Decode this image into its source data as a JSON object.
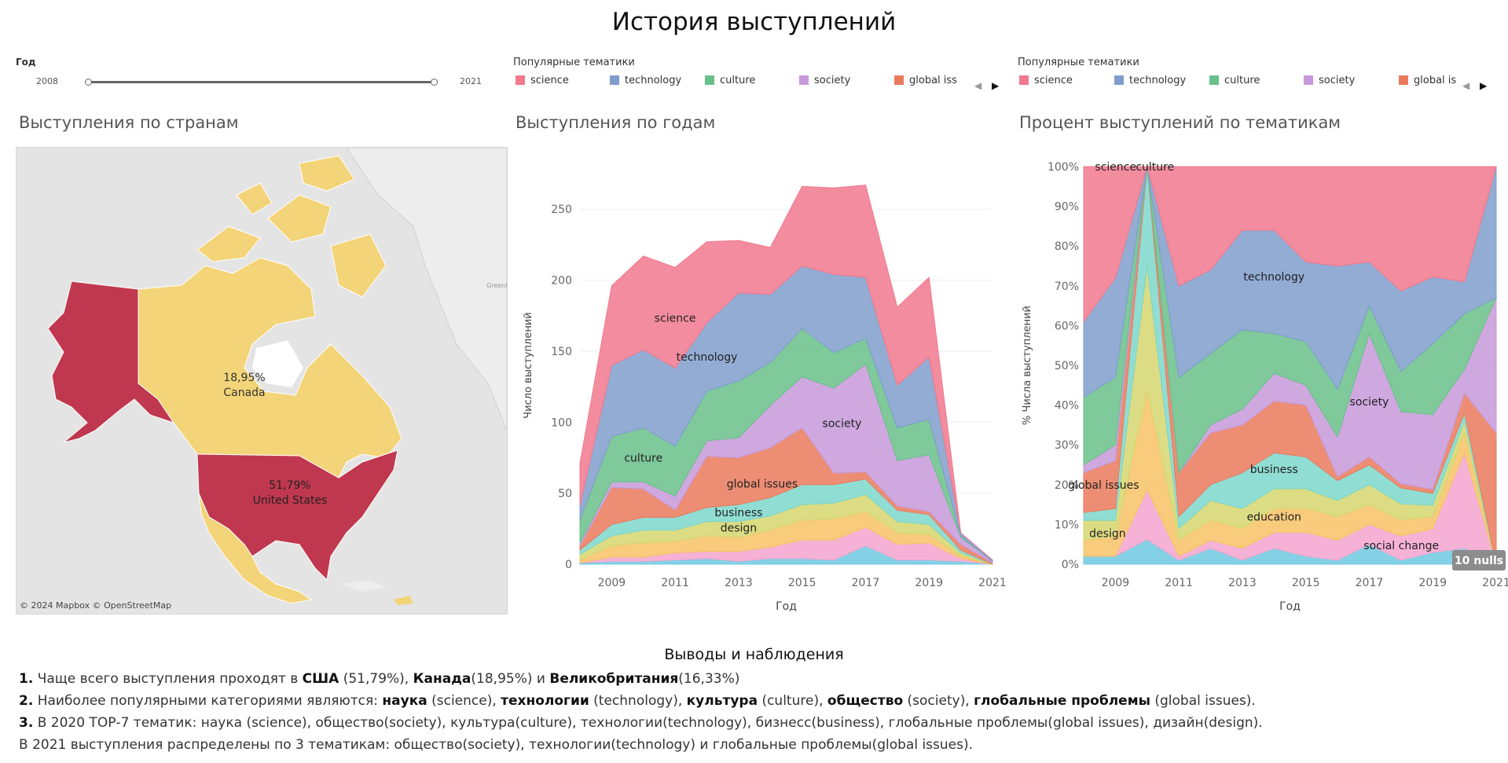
{
  "dashboard": {
    "title": "История выступлений"
  },
  "year_filter": {
    "label": "Год",
    "min": "2008",
    "max": "2021"
  },
  "legend_left": {
    "label": "Популярные тематики",
    "items": [
      {
        "name": "science",
        "color": "#f1788d"
      },
      {
        "name": "technology",
        "color": "#7f9dcc"
      },
      {
        "name": "culture",
        "color": "#69c08a"
      },
      {
        "name": "society",
        "color": "#c799d9"
      },
      {
        "name": "global iss",
        "color": "#ea7a5c"
      }
    ]
  },
  "legend_right": {
    "label": "Популярные тематики",
    "items": [
      {
        "name": "science",
        "color": "#f1788d"
      },
      {
        "name": "technology",
        "color": "#7f9dcc"
      },
      {
        "name": "culture",
        "color": "#69c08a"
      },
      {
        "name": "society",
        "color": "#c799d9"
      },
      {
        "name": "global is",
        "color": "#ea7a5c"
      }
    ]
  },
  "map": {
    "title": "Выступления по странам",
    "attribution": "© 2024 Mapbox © OpenStreetMap",
    "greenland_label": "Greenl",
    "countries": [
      {
        "name": "Canada",
        "pct": "18,95%",
        "color": "#f3d479"
      },
      {
        "name": "United States",
        "pct": "51,79%",
        "color": "#c0384f"
      }
    ]
  },
  "chart_data": [
    {
      "type": "area",
      "stacked": true,
      "title": "Выступления по годам",
      "xlabel": "Год",
      "ylabel": "Число выступлений",
      "x": [
        2008,
        2009,
        2010,
        2011,
        2012,
        2013,
        2014,
        2015,
        2016,
        2017,
        2018,
        2019,
        2020,
        2021
      ],
      "xticks": [
        2009,
        2011,
        2013,
        2015,
        2017,
        2019,
        2021
      ],
      "yticks": [
        0,
        50,
        100,
        150,
        200,
        250
      ],
      "ylim": [
        0,
        280
      ],
      "series": [
        {
          "color": "#6ec9e0",
          "values": [
            1,
            2,
            2,
            3,
            4,
            2,
            4,
            4,
            3,
            13,
            3,
            3,
            2,
            0
          ]
        },
        {
          "color": "#f4a5cf",
          "values": [
            0,
            3,
            3,
            5,
            5,
            7,
            8,
            13,
            14,
            13,
            11,
            12,
            2,
            0
          ]
        },
        {
          "color": "#f7c266",
          "values": [
            2,
            8,
            10,
            8,
            11,
            10,
            12,
            14,
            15,
            11,
            8,
            6,
            2,
            0
          ]
        },
        {
          "color": "#d6d66f",
          "values": [
            4,
            7,
            9,
            8,
            10,
            11,
            10,
            11,
            11,
            12,
            8,
            7,
            2,
            0
          ]
        },
        {
          "color": "#7cd7cb",
          "values": [
            3,
            8,
            9,
            9,
            10,
            12,
            13,
            14,
            13,
            11,
            8,
            7,
            2,
            0
          ]
        },
        {
          "color": "#ea7a5c",
          "values": [
            3,
            26,
            20,
            5,
            36,
            33,
            35,
            40,
            8,
            5,
            3,
            2,
            4,
            1
          ]
        },
        {
          "name": "society",
          "color": "#c799d9",
          "values": [
            2,
            4,
            5,
            10,
            11,
            14,
            30,
            36,
            60,
            76,
            32,
            40,
            5,
            1
          ]
        },
        {
          "name": "culture",
          "color": "#69c08a",
          "values": [
            16,
            32,
            38,
            35,
            35,
            40,
            30,
            34,
            25,
            18,
            23,
            25,
            1,
            0
          ]
        },
        {
          "name": "technology",
          "color": "#7f9dcc",
          "values": [
            10,
            50,
            55,
            55,
            48,
            62,
            48,
            44,
            55,
            43,
            30,
            44,
            2,
            1
          ]
        },
        {
          "name": "science",
          "color": "#f1788d",
          "values": [
            30,
            56,
            66,
            71,
            57,
            37,
            33,
            56,
            61,
            65,
            55,
            56,
            0,
            0
          ]
        }
      ],
      "area_labels": [
        {
          "text": "science"
        },
        {
          "text": "technology"
        },
        {
          "text": "culture"
        },
        {
          "text": "global issues"
        },
        {
          "text": "society"
        },
        {
          "text": "business"
        },
        {
          "text": "design"
        }
      ]
    },
    {
      "type": "area",
      "stacked": true,
      "percent": true,
      "title": "Процент выступлений по тематикам",
      "xlabel": "Год",
      "ylabel": "% Числа выступлений",
      "x": [
        2008,
        2009,
        2010,
        2011,
        2012,
        2013,
        2014,
        2015,
        2016,
        2017,
        2018,
        2019,
        2020,
        2021
      ],
      "xticks": [
        2009,
        2011,
        2013,
        2015,
        2017,
        2019,
        2021
      ],
      "yticks": [
        "0%",
        "10%",
        "20%",
        "30%",
        "40%",
        "50%",
        "60%",
        "70%",
        "80%",
        "90%",
        "100%"
      ],
      "null_badge": "10 nulls",
      "series": [
        {
          "color": "#6ec9e0",
          "values": [
            2,
            2,
            1,
            1,
            4,
            1,
            4,
            2,
            1,
            5,
            1,
            3,
            4,
            0
          ]
        },
        {
          "color": "#f4a5cf",
          "values": [
            0,
            0,
            2,
            1,
            2,
            3,
            4,
            6,
            5,
            5,
            6,
            6,
            24,
            0
          ]
        },
        {
          "color": "#f7c266",
          "values": [
            4,
            5,
            4,
            4,
            5,
            5,
            6,
            6,
            6,
            5,
            4,
            3,
            5,
            0
          ]
        },
        {
          "color": "#d6d66f",
          "values": [
            5,
            4,
            5,
            3,
            5,
            5,
            5,
            5,
            4,
            5,
            4,
            3,
            3,
            0
          ]
        },
        {
          "color": "#7cd7cb",
          "values": [
            2,
            3,
            4,
            3,
            4,
            9,
            9,
            8,
            5,
            5,
            4,
            3,
            2,
            0
          ]
        },
        {
          "color": "#ea7a5c",
          "values": [
            10,
            12,
            0,
            11,
            13,
            12,
            13,
            13,
            1,
            2,
            1,
            1,
            5,
            33
          ]
        },
        {
          "name": "society",
          "color": "#c799d9",
          "values": [
            2,
            4,
            0,
            0,
            2,
            4,
            7,
            5,
            10,
            31,
            18,
            19,
            6,
            34
          ]
        },
        {
          "name": "culture",
          "color": "#69c08a",
          "values": [
            17,
            17,
            0,
            24,
            18,
            20,
            10,
            11,
            12,
            7,
            10,
            18,
            14,
            0
          ]
        },
        {
          "name": "technology",
          "color": "#7f9dcc",
          "values": [
            19,
            25,
            0,
            23,
            21,
            25,
            26,
            20,
            31,
            11,
            20,
            17,
            8,
            33
          ]
        },
        {
          "name": "science",
          "color": "#f1788d",
          "values": [
            39,
            28,
            0,
            30,
            26,
            16,
            16,
            24,
            25,
            24,
            31,
            28,
            29,
            0
          ]
        }
      ],
      "area_labels": [
        {
          "text": "science"
        },
        {
          "text": "technology"
        },
        {
          "text": "culture"
        },
        {
          "text": "society"
        },
        {
          "text": "global issues"
        },
        {
          "text": "business"
        },
        {
          "text": "education"
        },
        {
          "text": "design"
        },
        {
          "text": "social change"
        }
      ]
    }
  ],
  "notes": {
    "title": "Выводы и наблюдения",
    "l1": {
      "num": "1.",
      "t1": " Чаще всего выступления проходят в ",
      "b1": "США",
      "t2": " (51,79%), ",
      "b2": "Канада",
      "t3": "(18,95%) и ",
      "b3": "Великобритания",
      "t4": "(16,33%)"
    },
    "l2": {
      "num": "2.",
      "t1": " Наиболее популярными категориями являются:  ",
      "b1": "наука",
      "t2": " (science),  ",
      "b2": "технологии",
      "t3": " (technology), ",
      "b3": "культура",
      "t4": " (culture), ",
      "b4": "общество",
      "t5": " (society), ",
      "b5": "глобальные проблемы",
      "t6": " (global issues)."
    },
    "l3": {
      "num": "3.",
      "t1": " В 2020 ТОР-7 тематик: наука (science), общество(society), культура(culture), технологии(technology), бизнесс(business), глобальные проблемы(global issues), дизайн(design)."
    },
    "l4": {
      "t1": "В 2021 выступления распределены по 3 тематикам: общество(society), технологии(technology) и глобальные проблемы(global issues)."
    }
  }
}
